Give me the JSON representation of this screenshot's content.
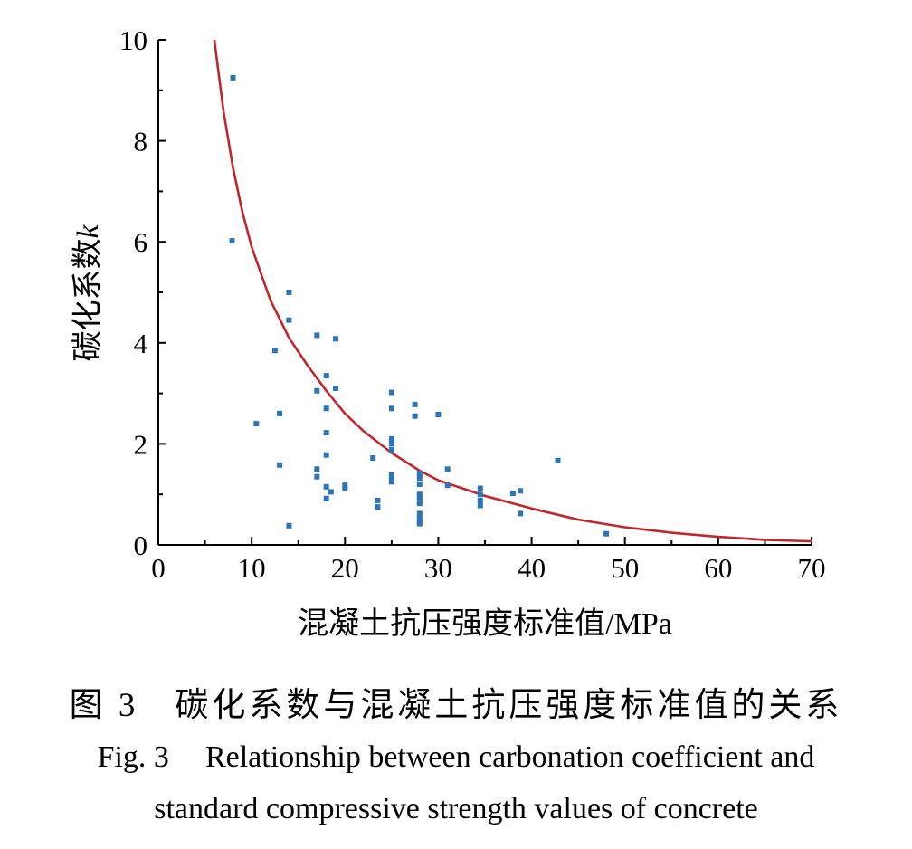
{
  "chart_data": {
    "type": "scatter",
    "xlabel": "混凝土抗压强度标准值/MPa",
    "ylabel_prefix": "碳化系数",
    "ylabel_var": "k",
    "xlim": [
      0,
      70
    ],
    "ylim": [
      0,
      10
    ],
    "x_ticks": [
      0,
      10,
      20,
      30,
      40,
      50,
      60,
      70
    ],
    "y_ticks": [
      0,
      2,
      4,
      6,
      8,
      10
    ],
    "series": [
      {
        "name": "data points",
        "marker": "square",
        "color": "#2e75b6",
        "points": [
          [
            8,
            9.25
          ],
          [
            7.9,
            6.02
          ],
          [
            14,
            5.0
          ],
          [
            14,
            4.45
          ],
          [
            12.5,
            3.85
          ],
          [
            17,
            4.15
          ],
          [
            19,
            4.08
          ],
          [
            18,
            3.35
          ],
          [
            17,
            3.05
          ],
          [
            19,
            3.1
          ],
          [
            18,
            2.7
          ],
          [
            13,
            2.6
          ],
          [
            10.5,
            2.4
          ],
          [
            18,
            2.22
          ],
          [
            18,
            1.78
          ],
          [
            13,
            1.58
          ],
          [
            17,
            1.5
          ],
          [
            17,
            1.35
          ],
          [
            18,
            1.15
          ],
          [
            18.5,
            1.05
          ],
          [
            18,
            0.92
          ],
          [
            20,
            1.18
          ],
          [
            20,
            1.12
          ],
          [
            14,
            0.38
          ],
          [
            23,
            1.72
          ],
          [
            23.5,
            0.88
          ],
          [
            23.5,
            0.75
          ],
          [
            25,
            3.02
          ],
          [
            25,
            2.7
          ],
          [
            25,
            2.1
          ],
          [
            25,
            2.0
          ],
          [
            25,
            1.88
          ],
          [
            25,
            1.38
          ],
          [
            25,
            1.3
          ],
          [
            25,
            1.25
          ],
          [
            27.5,
            2.78
          ],
          [
            27.5,
            2.55
          ],
          [
            30,
            2.58
          ],
          [
            28,
            1.42
          ],
          [
            28,
            1.32
          ],
          [
            28,
            1.2
          ],
          [
            28,
            1.0
          ],
          [
            28,
            0.95
          ],
          [
            28,
            0.88
          ],
          [
            28,
            0.82
          ],
          [
            28,
            0.62
          ],
          [
            28,
            0.52
          ],
          [
            28,
            0.45
          ],
          [
            28,
            0.42
          ],
          [
            31,
            1.5
          ],
          [
            31,
            1.18
          ],
          [
            34.5,
            1.12
          ],
          [
            34.5,
            1.0
          ],
          [
            34.5,
            0.88
          ],
          [
            34.5,
            0.78
          ],
          [
            38,
            1.02
          ],
          [
            38.8,
            1.07
          ],
          [
            38.8,
            0.62
          ],
          [
            42.8,
            1.67
          ],
          [
            48,
            0.22
          ]
        ]
      },
      {
        "name": "fit curve",
        "type": "line",
        "color": "#c0272d",
        "x": [
          6,
          7,
          8,
          9,
          10,
          12,
          14,
          16,
          18,
          20,
          22,
          25,
          28,
          30,
          35,
          40,
          45,
          50,
          55,
          60,
          65,
          70
        ],
        "y": [
          10.0,
          8.57,
          7.47,
          6.6,
          5.9,
          4.85,
          4.1,
          3.55,
          3.05,
          2.6,
          2.25,
          1.82,
          1.47,
          1.28,
          0.97,
          0.72,
          0.5,
          0.35,
          0.24,
          0.16,
          0.1,
          0.07
        ]
      }
    ]
  },
  "caption": {
    "cn_label": "图 3",
    "cn_text": "碳化系数与混凝土抗压强度标准值的关系",
    "en_label": "Fig. 3",
    "en_line1": "Relationship between carbonation coefficient and",
    "en_line2": "standard compressive strength values of concrete"
  }
}
